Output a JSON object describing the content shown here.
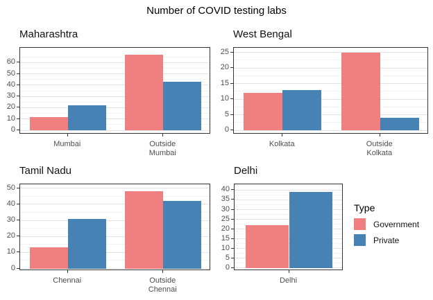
{
  "title": "Number of COVID testing labs",
  "legend": {
    "title": "Type",
    "items": [
      {
        "label": "Government",
        "color": "#F08080"
      },
      {
        "label": "Private",
        "color": "#4682B4"
      }
    ]
  },
  "style_colors": {
    "grid_major": "#E3E3E3",
    "grid_minor": "#F2F2F2",
    "axis_text": "#4D4D4D",
    "panel_border": "#333333",
    "title_text": "#000000"
  },
  "chart_data": [
    {
      "type": "bar",
      "title": "Maharashtra",
      "categories": [
        "Mumbai",
        "Outside Mumbai"
      ],
      "series": [
        {
          "name": "Government",
          "values": [
            12,
            67
          ]
        },
        {
          "name": "Private",
          "values": [
            22,
            43
          ]
        }
      ],
      "yticks": [
        0,
        10,
        20,
        30,
        40,
        50,
        60
      ],
      "ylim": [
        -3.6,
        73
      ],
      "grid": true,
      "legend_position": "right"
    },
    {
      "type": "bar",
      "title": "West Bengal",
      "categories": [
        "Kolkata",
        "Outside Kolkata"
      ],
      "series": [
        {
          "name": "Government",
          "values": [
            12,
            25
          ]
        },
        {
          "name": "Private",
          "values": [
            13,
            4
          ]
        }
      ],
      "yticks": [
        0,
        5,
        10,
        15,
        20,
        25
      ],
      "ylim": [
        -1.3,
        26.5
      ],
      "grid": true
    },
    {
      "type": "bar",
      "title": "Tamil Nadu",
      "categories": [
        "Chennai",
        "Outside Chennai"
      ],
      "series": [
        {
          "name": "Government",
          "values": [
            13,
            48
          ]
        },
        {
          "name": "Private",
          "values": [
            31,
            42
          ]
        }
      ],
      "yticks": [
        0,
        10,
        20,
        30,
        40,
        50
      ],
      "ylim": [
        -1.5,
        52.5
      ],
      "grid": true
    },
    {
      "type": "bar",
      "title": "Delhi",
      "categories": [
        "Delhi"
      ],
      "series": [
        {
          "name": "Government",
          "values": [
            22
          ]
        },
        {
          "name": "Private",
          "values": [
            39
          ]
        }
      ],
      "yticks": [
        0,
        5,
        10,
        15,
        20,
        25,
        30,
        35,
        40
      ],
      "ylim": [
        -1.5,
        43
      ],
      "grid": true
    }
  ]
}
